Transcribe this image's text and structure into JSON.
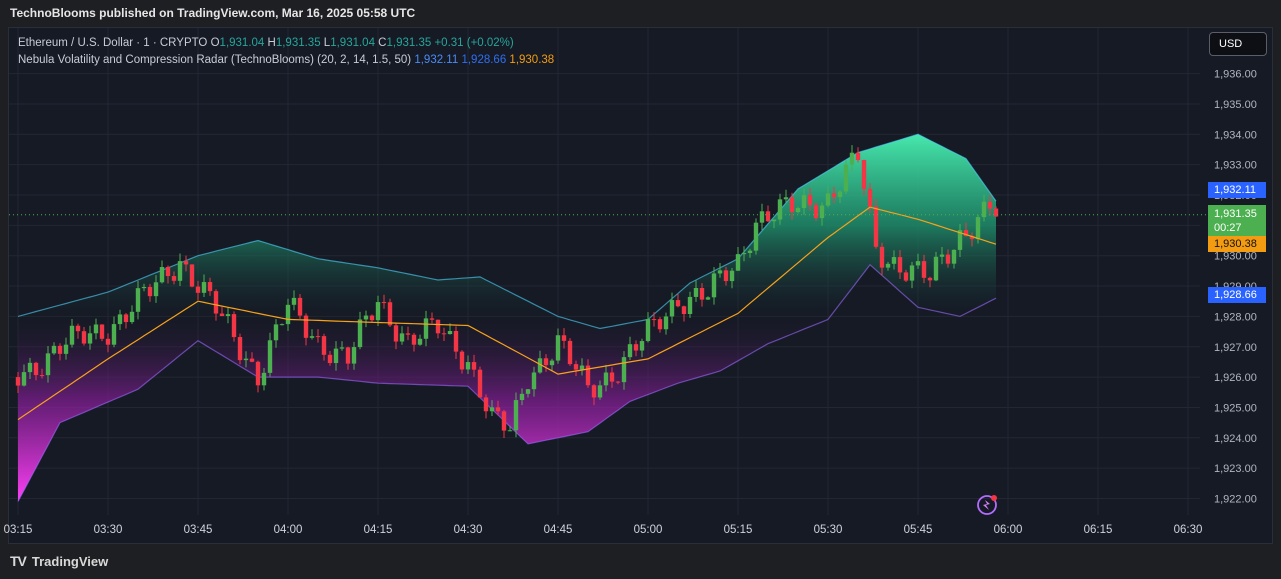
{
  "header": {
    "published": "TechnoBlooms published on TradingView.com, Mar 16, 2025 05:58 UTC"
  },
  "legend": {
    "symbol": "Ethereum / U.S. Dollar · 1 · CRYPTO",
    "o_label": "O",
    "o_value": "1,931.04",
    "h_label": "H",
    "h_value": "1,931.35",
    "l_label": "L",
    "l_value": "1,931.04",
    "c_label": "C",
    "c_value": "1,931.35",
    "change": "+0.31 (+0.02%)",
    "indicator": "Nebula Volatility and Compression Radar (TechnoBlooms) (20, 2, 14, 1.5, 50)",
    "ind_v1": "1,932.11",
    "ind_v2": "1,928.66",
    "ind_v3": "1,930.38"
  },
  "currency_button": "USD",
  "price_tags": {
    "upper": "1,932.11",
    "last": "1,931.35",
    "countdown": "00:27",
    "mid": "1,930.38",
    "lower": "1,928.66"
  },
  "colors": {
    "up": "#26a69a",
    "up_candle": "#4caf50",
    "down": "#f23645",
    "upper_band": "#2962ff",
    "basis": "#f7a21b",
    "glow_top": "#43e3a6",
    "glow_bottom": "#ff3df5"
  },
  "footer": {
    "brand": "TradingView",
    "logo": "TV"
  },
  "chart_data": {
    "type": "candlestick",
    "y_ticks": [
      "1,922.00",
      "1,923.00",
      "1,924.00",
      "1,925.00",
      "1,926.00",
      "1,927.00",
      "1,928.00",
      "1,929.00",
      "1,930.00",
      "1,931.00",
      "1,932.00",
      "1,933.00",
      "1,934.00",
      "1,935.00",
      "1,936.00"
    ],
    "x_ticks": [
      "03:15",
      "03:30",
      "03:45",
      "04:00",
      "04:15",
      "04:30",
      "04:45",
      "05:00",
      "05:15",
      "05:30",
      "05:45",
      "06:00",
      "06:15",
      "06:30"
    ],
    "ylim": [
      1921.5,
      1936.4
    ],
    "close_series": [
      {
        "t": "03:15",
        "v": 1926.0
      },
      {
        "t": "03:22",
        "v": 1927.0
      },
      {
        "t": "03:30",
        "v": 1927.6
      },
      {
        "t": "03:37",
        "v": 1928.8
      },
      {
        "t": "03:42",
        "v": 1929.9
      },
      {
        "t": "03:48",
        "v": 1928.2
      },
      {
        "t": "03:55",
        "v": 1926.1
      },
      {
        "t": "04:00",
        "v": 1928.3
      },
      {
        "t": "04:05",
        "v": 1927.2
      },
      {
        "t": "04:10",
        "v": 1926.6
      },
      {
        "t": "04:15",
        "v": 1928.5
      },
      {
        "t": "04:20",
        "v": 1927.2
      },
      {
        "t": "04:25",
        "v": 1927.6
      },
      {
        "t": "04:30",
        "v": 1926.6
      },
      {
        "t": "04:34",
        "v": 1924.6
      },
      {
        "t": "04:37",
        "v": 1924.2
      },
      {
        "t": "04:40",
        "v": 1926.1
      },
      {
        "t": "04:45",
        "v": 1927.1
      },
      {
        "t": "04:50",
        "v": 1925.6
      },
      {
        "t": "04:55",
        "v": 1926.3
      },
      {
        "t": "05:00",
        "v": 1927.4
      },
      {
        "t": "05:05",
        "v": 1928.6
      },
      {
        "t": "05:10",
        "v": 1928.7
      },
      {
        "t": "05:15",
        "v": 1929.8
      },
      {
        "t": "05:18",
        "v": 1931.2
      },
      {
        "t": "05:25",
        "v": 1931.6
      },
      {
        "t": "05:30",
        "v": 1931.9
      },
      {
        "t": "05:35",
        "v": 1933.2
      },
      {
        "t": "05:38",
        "v": 1930.2
      },
      {
        "t": "05:42",
        "v": 1929.7
      },
      {
        "t": "05:47",
        "v": 1929.2
      },
      {
        "t": "05:52",
        "v": 1930.7
      },
      {
        "t": "05:57",
        "v": 1931.6
      },
      {
        "t": "05:58",
        "v": 1931.35
      }
    ],
    "upper_glow": [
      {
        "t": "03:15",
        "v": 1928.0
      },
      {
        "t": "03:30",
        "v": 1928.8
      },
      {
        "t": "03:45",
        "v": 1930.0
      },
      {
        "t": "03:55",
        "v": 1930.5
      },
      {
        "t": "04:05",
        "v": 1929.9
      },
      {
        "t": "04:15",
        "v": 1929.6
      },
      {
        "t": "04:25",
        "v": 1929.2
      },
      {
        "t": "04:32",
        "v": 1929.3
      },
      {
        "t": "04:45",
        "v": 1928.0
      },
      {
        "t": "04:52",
        "v": 1927.6
      },
      {
        "t": "05:00",
        "v": 1927.9
      },
      {
        "t": "05:07",
        "v": 1929.1
      },
      {
        "t": "05:15",
        "v": 1929.9
      },
      {
        "t": "05:25",
        "v": 1932.2
      },
      {
        "t": "05:35",
        "v": 1933.4
      },
      {
        "t": "05:45",
        "v": 1934.0
      },
      {
        "t": "05:53",
        "v": 1933.2
      },
      {
        "t": "05:58",
        "v": 1931.8
      }
    ],
    "lower_glow": [
      {
        "t": "03:15",
        "v": 1921.9
      },
      {
        "t": "03:22",
        "v": 1924.5
      },
      {
        "t": "03:35",
        "v": 1925.6
      },
      {
        "t": "03:45",
        "v": 1927.2
      },
      {
        "t": "03:55",
        "v": 1926.0
      },
      {
        "t": "04:05",
        "v": 1926.0
      },
      {
        "t": "04:15",
        "v": 1925.8
      },
      {
        "t": "04:30",
        "v": 1925.7
      },
      {
        "t": "04:40",
        "v": 1923.8
      },
      {
        "t": "04:50",
        "v": 1924.2
      },
      {
        "t": "04:57",
        "v": 1925.2
      },
      {
        "t": "05:05",
        "v": 1925.8
      },
      {
        "t": "05:12",
        "v": 1926.2
      },
      {
        "t": "05:20",
        "v": 1927.1
      },
      {
        "t": "05:30",
        "v": 1927.9
      },
      {
        "t": "05:37",
        "v": 1929.7
      },
      {
        "t": "05:45",
        "v": 1928.3
      },
      {
        "t": "05:52",
        "v": 1928.0
      },
      {
        "t": "05:58",
        "v": 1928.6
      }
    ],
    "basis": [
      {
        "t": "03:15",
        "v": 1924.6
      },
      {
        "t": "03:30",
        "v": 1926.6
      },
      {
        "t": "03:45",
        "v": 1928.5
      },
      {
        "t": "04:00",
        "v": 1927.9
      },
      {
        "t": "04:15",
        "v": 1927.8
      },
      {
        "t": "04:30",
        "v": 1927.7
      },
      {
        "t": "04:45",
        "v": 1926.1
      },
      {
        "t": "05:00",
        "v": 1926.6
      },
      {
        "t": "05:15",
        "v": 1928.1
      },
      {
        "t": "05:30",
        "v": 1930.6
      },
      {
        "t": "05:37",
        "v": 1931.6
      },
      {
        "t": "05:45",
        "v": 1931.2
      },
      {
        "t": "05:58",
        "v": 1930.38
      }
    ]
  }
}
